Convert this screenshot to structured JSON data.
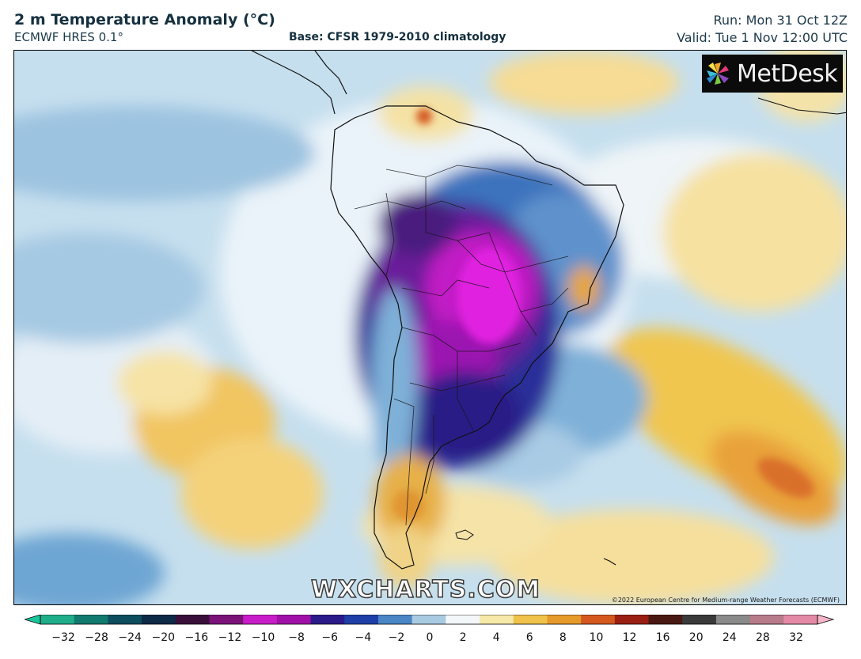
{
  "header": {
    "title": "2 m Temperature Anomaly (°C)",
    "model": "ECMWF HRES 0.1°",
    "base": "Base: CFSR 1979-2010 climatology",
    "run": "Run: Mon 31 Oct 12Z",
    "valid": "Valid: Tue 1 Nov 12:00 UTC"
  },
  "map": {
    "logo_text": "MetDesk",
    "logo_icon": "metdesk-pinwheel-icon",
    "watermark": "WXCHARTS.COM",
    "copyright": "©2022 European Centre for Medium-range Weather Forecasts (ECMWF)"
  },
  "colorbar": {
    "ticks": [
      "−32",
      "−28",
      "−24",
      "−20",
      "−16",
      "−12",
      "−10",
      "−8",
      "−6",
      "−4",
      "−2",
      "0",
      "2",
      "4",
      "6",
      "8",
      "10",
      "12",
      "16",
      "20",
      "24",
      "28",
      "32"
    ],
    "colors": [
      "#1fae8a",
      "#117a6e",
      "#0c4d5e",
      "#0d2a47",
      "#3a0f3a",
      "#7a1278",
      "#c81cc8",
      "#a010a8",
      "#2b1a8a",
      "#1e3fa8",
      "#4a86c6",
      "#a9cbe2",
      "#f4f7fa",
      "#f6e9a8",
      "#f0c24a",
      "#e69a2a",
      "#d4581e",
      "#9a1f12",
      "#4a1812",
      "#3a3a3a",
      "#8a8a8a",
      "#b87b8a",
      "#e48aa6"
    ],
    "left_arrow_color": "#19c59a",
    "right_arrow_color": "#f5b6c8"
  }
}
